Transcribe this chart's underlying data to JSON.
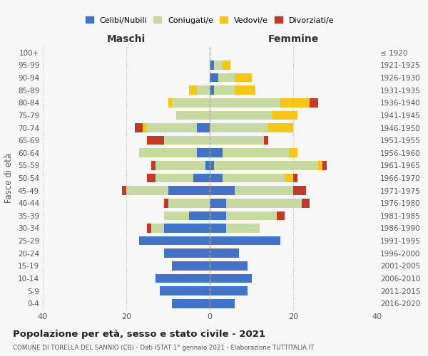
{
  "age_groups": [
    "0-4",
    "5-9",
    "10-14",
    "15-19",
    "20-24",
    "25-29",
    "30-34",
    "35-39",
    "40-44",
    "45-49",
    "50-54",
    "55-59",
    "60-64",
    "65-69",
    "70-74",
    "75-79",
    "80-84",
    "85-89",
    "90-94",
    "95-99",
    "100+"
  ],
  "birth_years": [
    "2016-2020",
    "2011-2015",
    "2006-2010",
    "2001-2005",
    "1996-2000",
    "1991-1995",
    "1986-1990",
    "1981-1985",
    "1976-1980",
    "1971-1975",
    "1966-1970",
    "1961-1965",
    "1956-1960",
    "1951-1955",
    "1946-1950",
    "1941-1945",
    "1936-1940",
    "1931-1935",
    "1926-1930",
    "1921-1925",
    "≤ 1920"
  ],
  "male": {
    "celibe": [
      9,
      12,
      13,
      9,
      11,
      17,
      11,
      5,
      0,
      10,
      4,
      1,
      3,
      0,
      3,
      0,
      0,
      0,
      0,
      0,
      0
    ],
    "coniugato": [
      0,
      0,
      0,
      0,
      0,
      0,
      3,
      6,
      10,
      10,
      9,
      12,
      14,
      11,
      12,
      8,
      9,
      3,
      0,
      0,
      0
    ],
    "vedovo": [
      0,
      0,
      0,
      0,
      0,
      0,
      0,
      0,
      0,
      0,
      0,
      0,
      0,
      0,
      1,
      0,
      1,
      2,
      0,
      0,
      0
    ],
    "divorziato": [
      0,
      0,
      0,
      0,
      0,
      0,
      1,
      0,
      1,
      1,
      2,
      1,
      0,
      4,
      2,
      0,
      0,
      0,
      0,
      0,
      0
    ]
  },
  "female": {
    "nubile": [
      6,
      9,
      10,
      9,
      7,
      17,
      4,
      4,
      4,
      6,
      3,
      1,
      3,
      0,
      0,
      0,
      0,
      1,
      2,
      1,
      0
    ],
    "coniugata": [
      0,
      0,
      0,
      0,
      0,
      0,
      8,
      12,
      18,
      14,
      15,
      25,
      16,
      13,
      14,
      15,
      17,
      5,
      4,
      2,
      0
    ],
    "vedova": [
      0,
      0,
      0,
      0,
      0,
      0,
      0,
      0,
      0,
      0,
      2,
      1,
      2,
      0,
      6,
      6,
      7,
      5,
      4,
      2,
      0
    ],
    "divorziata": [
      0,
      0,
      0,
      0,
      0,
      0,
      0,
      2,
      2,
      3,
      1,
      1,
      0,
      1,
      0,
      0,
      2,
      0,
      0,
      0,
      0
    ]
  },
  "colors": {
    "celibe": "#4472c4",
    "coniugato": "#c5d9a0",
    "vedovo": "#f5c518",
    "divorziato": "#c0392b"
  },
  "title": "Popolazione per età, sesso e stato civile - 2021",
  "subtitle": "COMUNE DI TORELLA DEL SANNIO (CB) - Dati ISTAT 1° gennaio 2021 - Elaborazione TUTTITALIA.IT",
  "xlabel_left": "Maschi",
  "xlabel_right": "Femmine",
  "ylabel_left": "Fasce di età",
  "xlim": 40,
  "legend_labels": [
    "Celibi/Nubili",
    "Coniugati/e",
    "Vedovi/e",
    "Divorziati/e"
  ],
  "background_color": "#f7f7f7"
}
